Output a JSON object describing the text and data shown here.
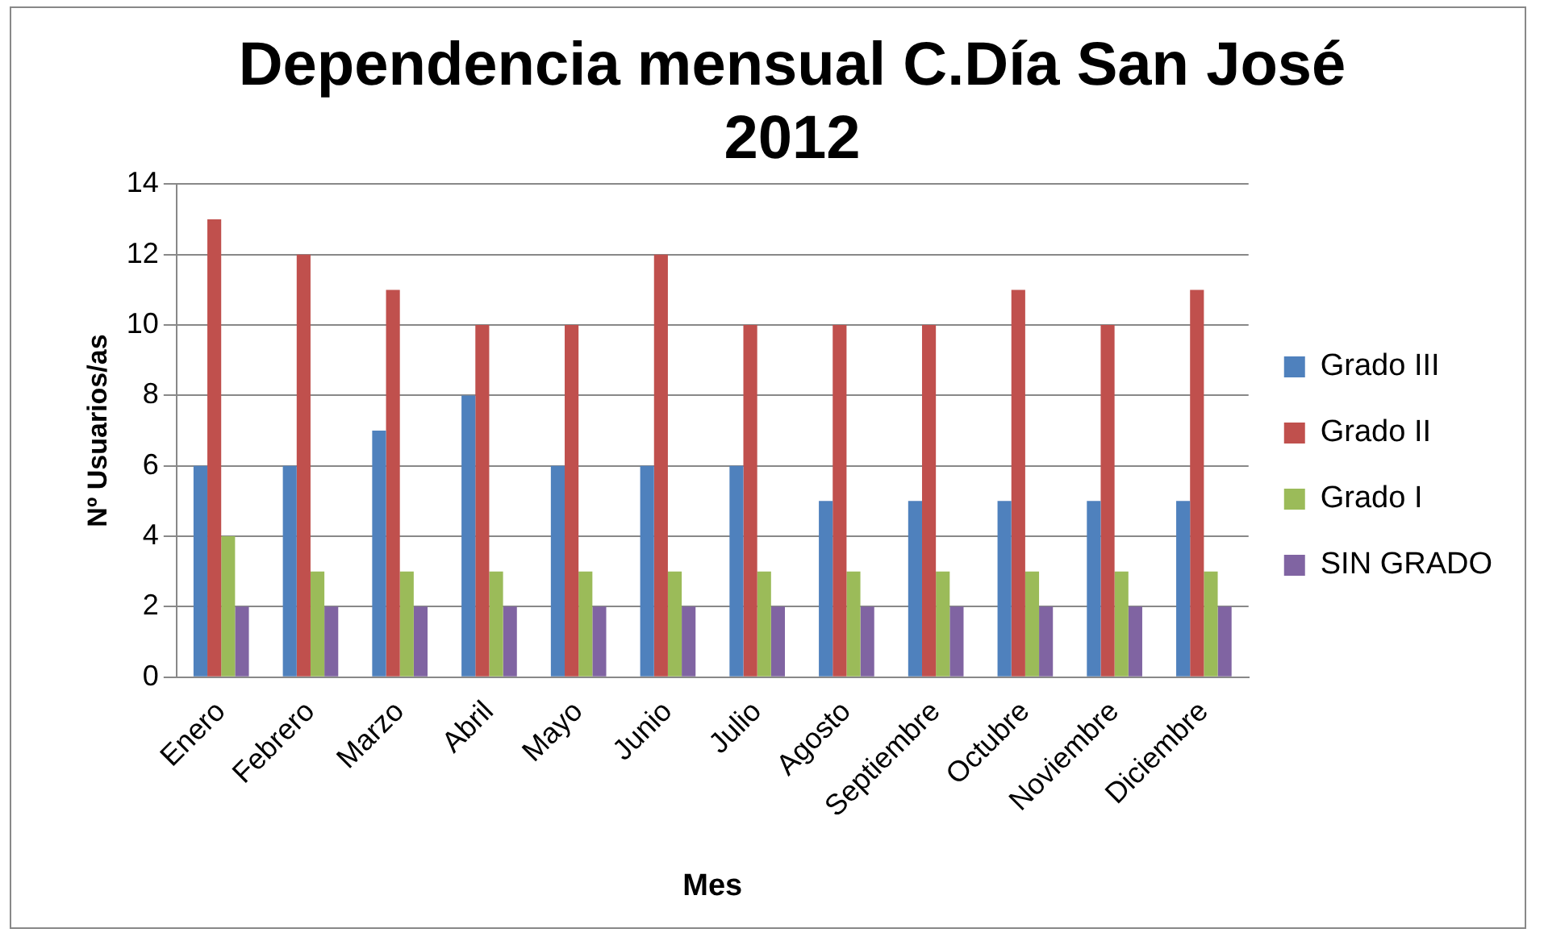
{
  "chart_data": {
    "type": "bar",
    "title": "Dependencia mensual C.Día San José 2012",
    "xlabel": "Mes",
    "ylabel": "Nº Usuarios/as",
    "categories": [
      "Enero",
      "Febrero",
      "Marzo",
      "Abril",
      "Mayo",
      "Junio",
      "Julio",
      "Agosto",
      "Septiembre",
      "Octubre",
      "Noviembre",
      "Diciembre"
    ],
    "series": [
      {
        "name": "Grado III",
        "color": "#4f81bd",
        "values": [
          6,
          6,
          7,
          8,
          6,
          6,
          6,
          5,
          5,
          5,
          5,
          5
        ]
      },
      {
        "name": "Grado II",
        "color": "#c0504d",
        "values": [
          13,
          12,
          11,
          10,
          10,
          12,
          10,
          10,
          10,
          11,
          10,
          11
        ]
      },
      {
        "name": "Grado I",
        "color": "#9bbb59",
        "values": [
          4,
          3,
          3,
          3,
          3,
          3,
          3,
          3,
          3,
          3,
          3,
          3
        ]
      },
      {
        "name": "SIN GRADO",
        "color": "#8064a2",
        "values": [
          2,
          2,
          2,
          2,
          2,
          2,
          2,
          2,
          2,
          2,
          2,
          2
        ]
      }
    ],
    "ylim": [
      0,
      14
    ],
    "yticks": [
      0,
      2,
      4,
      6,
      8,
      10,
      12,
      14
    ],
    "grid": "y",
    "legend": "right"
  }
}
